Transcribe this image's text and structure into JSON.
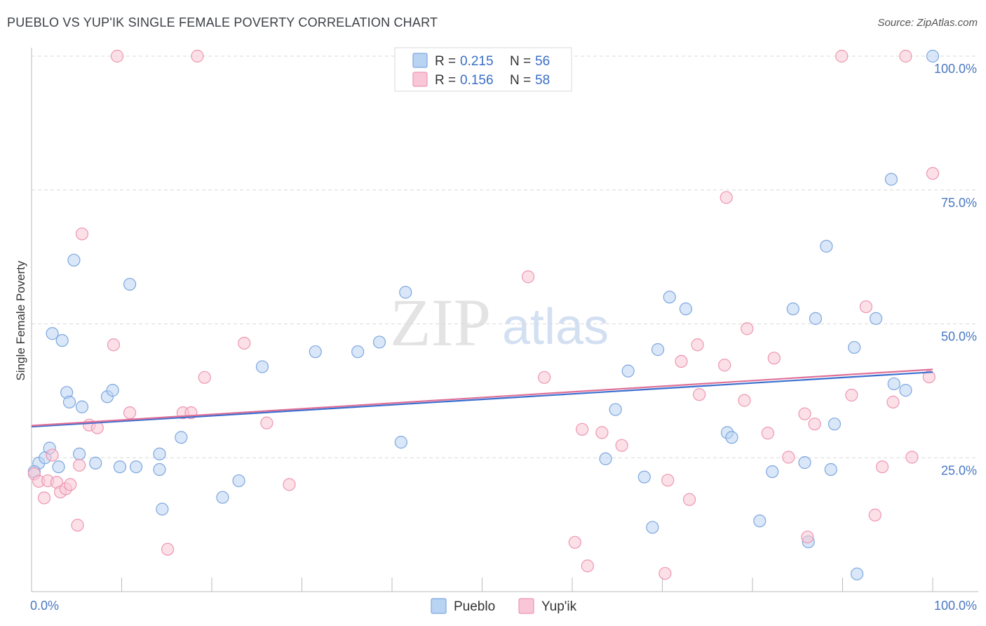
{
  "header": {
    "title": "PUEBLO VS YUP'IK SINGLE FEMALE POVERTY CORRELATION CHART",
    "source": "Source: ZipAtlas.com"
  },
  "watermark": {
    "zip": "ZIP",
    "atlas": "atlas"
  },
  "colors": {
    "pueblo_fill": "#b9d3f3",
    "pueblo_stroke": "#7ea7df",
    "pueblo_line": "#3a6fcf",
    "yupik_fill": "#f8c6d6",
    "yupik_stroke": "#ee96b2",
    "yupik_line": "#e07097"
  },
  "legend_top": {
    "rows": [
      {
        "r_label": "R = ",
        "r_value": "0.215",
        "n_label": "N = ",
        "n_value": "56"
      },
      {
        "r_label": "R = ",
        "r_value": "0.156",
        "n_label": "N = ",
        "n_value": "58"
      }
    ]
  },
  "legend_bottom": {
    "items": [
      "Pueblo",
      "Yup'ik"
    ]
  },
  "chart_data": {
    "type": "scatter",
    "title": "PUEBLO VS YUP'IK SINGLE FEMALE POVERTY CORRELATION CHART",
    "xlabel": "",
    "ylabel": "Single Female Poverty",
    "xlim": [
      0,
      100
    ],
    "ylim": [
      0,
      100
    ],
    "x_tick_labels": [
      "0.0%",
      "100.0%"
    ],
    "y_tick_labels": [
      "25.0%",
      "50.0%",
      "75.0%",
      "100.0%"
    ],
    "y_ticks": [
      25,
      50,
      75,
      100
    ],
    "grid": true,
    "legend_position": "top-center",
    "series": [
      {
        "name": "Pueblo",
        "R": 0.215,
        "N": 56,
        "trend": [
          [
            0,
            30.8
          ],
          [
            100,
            41.0
          ]
        ],
        "points": [
          [
            0.8,
            24.0
          ],
          [
            1.5,
            25.0
          ],
          [
            2.0,
            26.8
          ],
          [
            2.3,
            48.2
          ],
          [
            3.0,
            23.3
          ],
          [
            3.4,
            46.9
          ],
          [
            3.9,
            37.2
          ],
          [
            4.2,
            35.4
          ],
          [
            5.3,
            25.7
          ],
          [
            5.6,
            34.5
          ],
          [
            4.7,
            61.9
          ],
          [
            7.1,
            24.0
          ],
          [
            8.4,
            36.4
          ],
          [
            9.0,
            37.6
          ],
          [
            9.8,
            23.3
          ],
          [
            10.9,
            57.4
          ],
          [
            11.6,
            23.3
          ],
          [
            14.2,
            25.7
          ],
          [
            14.2,
            22.8
          ],
          [
            14.5,
            15.4
          ],
          [
            16.6,
            28.8
          ],
          [
            21.2,
            17.6
          ],
          [
            23.0,
            20.7
          ],
          [
            25.6,
            42.0
          ],
          [
            31.5,
            44.8
          ],
          [
            36.2,
            44.8
          ],
          [
            38.6,
            46.6
          ],
          [
            41.5,
            55.9
          ],
          [
            41.0,
            27.9
          ],
          [
            63.7,
            24.8
          ],
          [
            64.8,
            34.0
          ],
          [
            66.2,
            41.2
          ],
          [
            68.0,
            21.4
          ],
          [
            68.9,
            12.0
          ],
          [
            69.5,
            45.2
          ],
          [
            70.8,
            55.0
          ],
          [
            72.6,
            52.8
          ],
          [
            77.2,
            29.7
          ],
          [
            77.7,
            28.8
          ],
          [
            80.8,
            13.2
          ],
          [
            82.2,
            22.4
          ],
          [
            84.5,
            52.8
          ],
          [
            85.8,
            24.1
          ],
          [
            86.2,
            9.3
          ],
          [
            87.0,
            51.0
          ],
          [
            88.2,
            64.5
          ],
          [
            88.7,
            22.8
          ],
          [
            89.1,
            31.3
          ],
          [
            91.3,
            45.6
          ],
          [
            91.6,
            3.3
          ],
          [
            93.7,
            51.0
          ],
          [
            95.4,
            77.0
          ],
          [
            95.7,
            38.8
          ],
          [
            97.0,
            37.6
          ],
          [
            100.0,
            100.0
          ],
          [
            0.3,
            22.4
          ]
        ]
      },
      {
        "name": "Yup'ik",
        "R": 0.156,
        "N": 58,
        "trend": [
          [
            0,
            31.0
          ],
          [
            100,
            41.5
          ]
        ],
        "points": [
          [
            0.3,
            22.0
          ],
          [
            0.8,
            20.6
          ],
          [
            1.4,
            17.5
          ],
          [
            1.8,
            20.7
          ],
          [
            2.3,
            25.5
          ],
          [
            2.8,
            20.4
          ],
          [
            3.2,
            18.6
          ],
          [
            3.8,
            19.2
          ],
          [
            4.3,
            20.0
          ],
          [
            5.1,
            12.4
          ],
          [
            5.3,
            23.6
          ],
          [
            5.6,
            66.8
          ],
          [
            6.4,
            31.1
          ],
          [
            7.3,
            30.6
          ],
          [
            9.1,
            46.1
          ],
          [
            9.5,
            100.0
          ],
          [
            10.9,
            33.4
          ],
          [
            15.1,
            7.9
          ],
          [
            16.8,
            33.4
          ],
          [
            17.7,
            33.4
          ],
          [
            18.4,
            100.0
          ],
          [
            19.2,
            40.0
          ],
          [
            23.6,
            46.4
          ],
          [
            26.1,
            31.5
          ],
          [
            28.6,
            20.0
          ],
          [
            55.1,
            58.8
          ],
          [
            56.9,
            40.0
          ],
          [
            60.3,
            9.2
          ],
          [
            61.1,
            30.3
          ],
          [
            61.7,
            4.8
          ],
          [
            63.3,
            29.7
          ],
          [
            65.5,
            27.3
          ],
          [
            70.3,
            3.4
          ],
          [
            70.6,
            20.8
          ],
          [
            72.1,
            43.0
          ],
          [
            73.0,
            17.2
          ],
          [
            73.9,
            46.1
          ],
          [
            74.1,
            36.8
          ],
          [
            76.9,
            42.3
          ],
          [
            77.1,
            73.6
          ],
          [
            79.1,
            35.7
          ],
          [
            79.4,
            49.1
          ],
          [
            81.7,
            29.6
          ],
          [
            82.4,
            43.6
          ],
          [
            84.0,
            25.1
          ],
          [
            85.8,
            33.2
          ],
          [
            86.1,
            10.2
          ],
          [
            86.9,
            31.3
          ],
          [
            89.9,
            100.0
          ],
          [
            91.0,
            36.7
          ],
          [
            92.6,
            53.2
          ],
          [
            93.6,
            14.3
          ],
          [
            94.4,
            23.3
          ],
          [
            95.6,
            35.4
          ],
          [
            97.0,
            100.0
          ],
          [
            97.7,
            25.1
          ],
          [
            100.0,
            78.1
          ],
          [
            99.6,
            40.1
          ]
        ]
      }
    ]
  }
}
